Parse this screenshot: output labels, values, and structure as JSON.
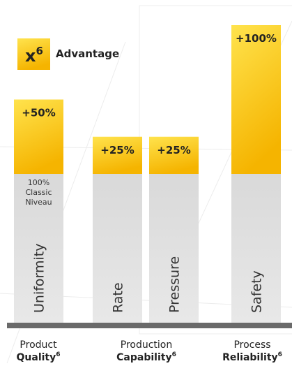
{
  "chart_data": {
    "type": "bar",
    "legend": {
      "symbol": "x",
      "sup": "6",
      "label": "Advantage"
    },
    "base": {
      "value": 100,
      "label": "100%",
      "caption": [
        "Classic",
        "Niveau"
      ]
    },
    "categories": [
      "Uniformity",
      "Rate",
      "Pressure",
      "Safety"
    ],
    "values": [
      50,
      25,
      25,
      100
    ],
    "value_labels": [
      "+50%",
      "+25%",
      "+25%",
      "+100%"
    ],
    "groups": [
      {
        "name": "Product",
        "bold": "Quality",
        "sup": "6"
      },
      {
        "name": "Production",
        "bold": "Capability",
        "sup": "6"
      },
      {
        "name": "Process",
        "bold": "Reliability",
        "sup": "6"
      }
    ]
  }
}
